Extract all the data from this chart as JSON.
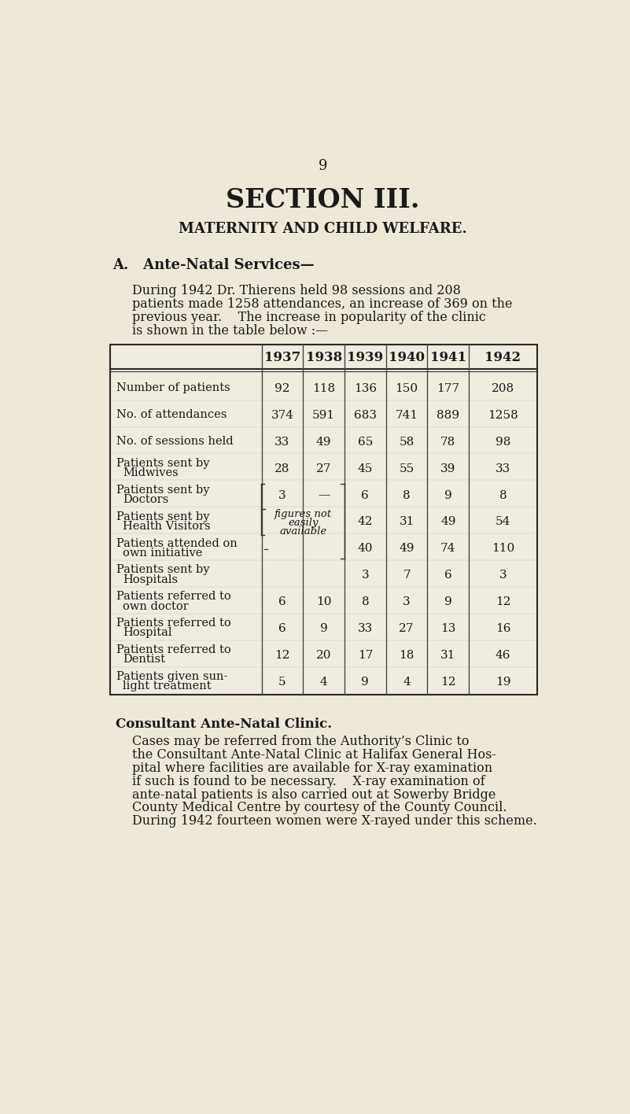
{
  "page_number": "9",
  "title": "SECTION III.",
  "subtitle": "MATERNITY AND CHILD WELFARE.",
  "section_heading": "A.   Ante-Natal Services—",
  "intro_lines": [
    "During 1942 Dr. Thierens held 98 sessions and 208",
    "patients made 1258 attendances, an increase of 369 on the",
    "previous year.    The increase in popularity of the clinic",
    "is shown in the table below :—"
  ],
  "years": [
    "1937",
    "1938",
    "1939",
    "1940",
    "1941",
    "1942"
  ],
  "table_rows": [
    {
      "label": "Number of patients",
      "label2": null,
      "values": [
        "92",
        "118",
        "136",
        "150",
        "177",
        "208"
      ]
    },
    {
      "label": "No. of attendances",
      "label2": null,
      "values": [
        "374",
        "591",
        "683",
        "741",
        "889",
        "1258"
      ]
    },
    {
      "label": "No. of sessions held",
      "label2": null,
      "values": [
        "33",
        "49",
        "65",
        "58",
        "78",
        "98"
      ]
    },
    {
      "label": "Patients sent by",
      "label2": "Midwives",
      "values": [
        "28",
        "27",
        "45",
        "55",
        "39",
        "33"
      ]
    },
    {
      "label": "Patients sent by",
      "label2": "Doctors",
      "values": [
        "3",
        "—",
        "6",
        "8",
        "9",
        "8"
      ]
    },
    {
      "label": "Patients sent by",
      "label2": "Health Visitors",
      "values": [
        null,
        null,
        "42",
        "31",
        "49",
        "54"
      ]
    },
    {
      "label": "Patients attended on",
      "label2": "own initiative",
      "values": [
        null,
        null,
        "40",
        "49",
        "74",
        "110"
      ]
    },
    {
      "label": "Patients sent by",
      "label2": "Hospitals",
      "values": [
        null,
        null,
        "3",
        "7",
        "6",
        "3"
      ]
    },
    {
      "label": "Patients referred to",
      "label2": "own doctor",
      "values": [
        "6",
        "10",
        "8",
        "3",
        "9",
        "12"
      ]
    },
    {
      "label": "Patients referred to",
      "label2": "Hospital",
      "values": [
        "6",
        "9",
        "33",
        "27",
        "13",
        "16"
      ]
    },
    {
      "label": "Patients referred to",
      "label2": "Dentist",
      "values": [
        "12",
        "20",
        "17",
        "18",
        "31",
        "46"
      ]
    },
    {
      "label": "Patients given sun-",
      "label2": "light treatment",
      "values": [
        "5",
        "4",
        "9",
        "4",
        "12",
        "19"
      ]
    }
  ],
  "figures_not_lines": [
    "figures not",
    "easily",
    "available"
  ],
  "consultant_heading": "Consultant Ante-Natal Clinic.",
  "consultant_lines": [
    "Cases may be referred from the Authority’s Clinic to",
    "the Consultant Ante-Natal Clinic at Halifax General Hos-",
    "pital where facilities are available for X-ray examination",
    "if such is found to be necessary.    X-ray examination of",
    "ante-natal patients is also carried out at Sowerby Bridge",
    "County Medical Centre by courtesy of the County Council.",
    "During 1942 fourteen women were X-rayed under this scheme."
  ],
  "bg_color": "#ede8d8",
  "text_color": "#1a1a1a",
  "table_bg": "#f0ece0"
}
